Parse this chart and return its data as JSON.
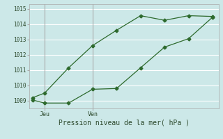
{
  "title": "Pression niveau de la mer( hPa )",
  "background_color": "#cce8e8",
  "grid_color": "#ffffff",
  "line_color": "#2d6a2d",
  "marker_color": "#2d6a2d",
  "ylim": [
    1008.5,
    1015.3
  ],
  "yticks": [
    1009,
    1010,
    1011,
    1012,
    1013,
    1014,
    1015
  ],
  "xtick_labels": [
    "Jeu",
    "Ven"
  ],
  "xtick_positions": [
    1,
    5
  ],
  "line1_x": [
    0,
    1,
    3,
    5,
    7,
    9,
    11,
    13,
    15
  ],
  "line1_y": [
    1009.2,
    1009.5,
    1011.15,
    1012.6,
    1013.6,
    1014.55,
    1014.25,
    1014.55,
    1014.5
  ],
  "line2_x": [
    0,
    1,
    3,
    5,
    7,
    9,
    11,
    13,
    15
  ],
  "line2_y": [
    1009.05,
    1008.85,
    1008.85,
    1009.75,
    1009.8,
    1011.15,
    1012.5,
    1013.05,
    1014.45
  ],
  "vline_x": 1,
  "vline2_x": 5,
  "xlim": [
    -0.3,
    15.5
  ]
}
